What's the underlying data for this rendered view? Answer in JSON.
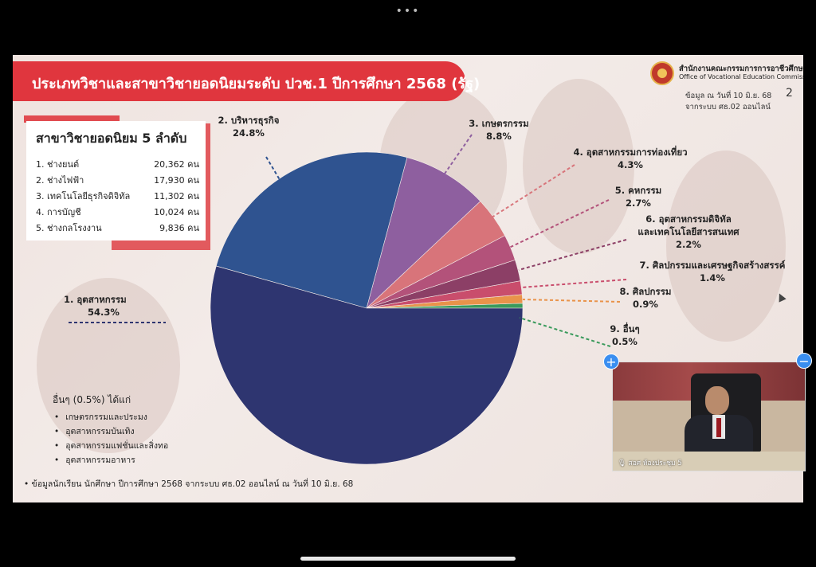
{
  "window": {
    "dots": "•••"
  },
  "slide": {
    "title": "ประเภทวิชาและสาขาวิชายอดนิยมระดับ ปวช.1 ปีการศึกษา 2568 (รัฐ)",
    "office_th": "สำนักงานคณะกรรมการการอาชีวศึกษา",
    "office_en": "Office of Vocational Education Commission",
    "slide_number": "2",
    "data_note_line1": "ข้อมูล ณ วันที่ 10 มิ.ย. 68",
    "data_note_line2": "จากระบบ ศธ.02 ออนไลน์",
    "footnote": "ข้อมูลนักเรียน นักศึกษา ปีการศึกษา 2568 จากระบบ ศธ.02 ออนไลน์ ณ วันที่ 10 มิ.ย. 68"
  },
  "ranking": {
    "title": "สาขาวิชายอดนิยม 5 ลำดับ",
    "rows": [
      {
        "name": "1.  ช่างยนต์",
        "value": "20,362 คน"
      },
      {
        "name": "2. ช่างไฟฟ้า",
        "value": "17,930 คน"
      },
      {
        "name": "3. เทคโนโลยีธุรกิจดิจิทัล",
        "value": "11,302 คน"
      },
      {
        "name": "4. การบัญชี",
        "value": "10,024 คน"
      },
      {
        "name": "5. ช่างกลโรงงาน",
        "value": "9,836 คน"
      }
    ]
  },
  "others": {
    "title": "อื่นๆ (0.5%) ได้แก่",
    "items": [
      "เกษตรกรรมและประมง",
      "อุตสาหกรรมบันเทิง",
      "อุตสาหกรรมแฟชั่นและสิ่งทอ",
      "อุตสาหกรรมอาหาร"
    ]
  },
  "chart_data": {
    "type": "pie",
    "title": "",
    "slices": [
      {
        "name": "1. อุตสาหกรรม",
        "label_lines": [
          "1. อุตสาหกรรม"
        ],
        "value": 54.3,
        "display": "54.3%",
        "color": "#2e3570"
      },
      {
        "name": "2. บริหารธุรกิจ",
        "label_lines": [
          "2. บริหารธุรกิจ"
        ],
        "value": 24.8,
        "display": "24.8%",
        "color": "#2f5390"
      },
      {
        "name": "3. เกษตรกรรม",
        "label_lines": [
          "3. เกษตรกรรม"
        ],
        "value": 8.8,
        "display": "8.8%",
        "color": "#8e5f9f"
      },
      {
        "name": "4. อุตสาหกรรมการท่องเที่ยว",
        "label_lines": [
          "4. อุตสาหกรรมการท่องเที่ยว"
        ],
        "value": 4.3,
        "display": "4.3%",
        "color": "#d8747a"
      },
      {
        "name": "5. คหกรรม",
        "label_lines": [
          "5. คหกรรม"
        ],
        "value": 2.7,
        "display": "2.7%",
        "color": "#b3527a"
      },
      {
        "name": "6. อุตสาหกรรมดิจิทัลและเทคโนโลยีสารสนเทศ",
        "label_lines": [
          "6. อุตสาหกรรมดิจิทัล",
          "และเทคโนโลยีสารสนเทศ"
        ],
        "value": 2.2,
        "display": "2.2%",
        "color": "#8c3f66"
      },
      {
        "name": "7. ศิลปกรรมและเศรษฐกิจสร้างสรรค์",
        "label_lines": [
          "7. ศิลปกรรมและเศรษฐกิจสร้างสรรค์"
        ],
        "value": 1.4,
        "display": "1.4%",
        "color": "#c94d6c"
      },
      {
        "name": "8. ศิลปกรรม",
        "label_lines": [
          "8. ศิลปกรรม"
        ],
        "value": 0.9,
        "display": "0.9%",
        "color": "#e9934a"
      },
      {
        "name": "9. อื่นๆ",
        "label_lines": [
          "9. อื่นๆ"
        ],
        "value": 0.5,
        "display": "0.5%",
        "color": "#3a9a5c"
      }
    ]
  },
  "video": {
    "label": "สอศ ห้องประชุม 5"
  },
  "controls": {
    "plus": "+",
    "minus": "−"
  }
}
